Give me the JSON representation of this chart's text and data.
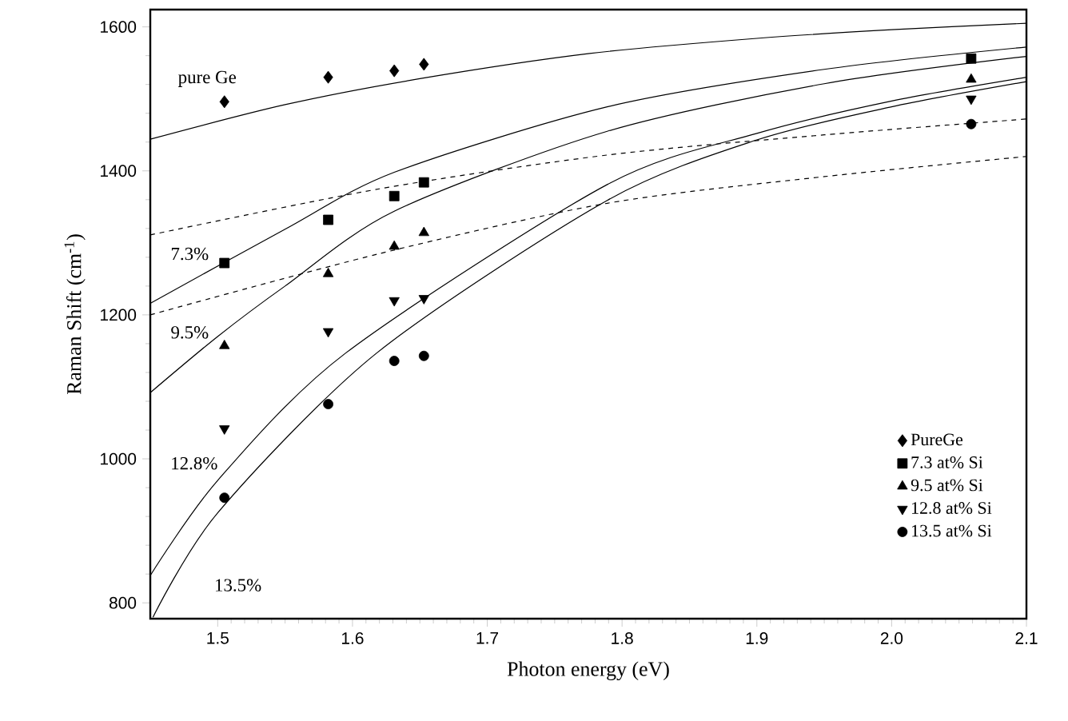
{
  "chart_data": {
    "type": "scatter",
    "xlabel": "Photon energy (eV)",
    "ylabel": "Raman Shift (cm$^{-1}$)",
    "xlim": [
      1.45,
      2.1
    ],
    "ylim": [
      778,
      1624
    ],
    "xticks": [
      1.5,
      1.6,
      1.7,
      1.8,
      1.9,
      {
        "value": 2.0,
        "label": "2.0"
      },
      2.1
    ],
    "yticks": [
      800,
      1000,
      1200,
      1400,
      1600
    ],
    "grid": false,
    "legend": "bottom right",
    "series": [
      {
        "name": "PureGe",
        "color": "#000000",
        "marker": "diamond",
        "x": [
          1.505,
          1.582,
          1.631,
          1.653
        ],
        "values": [
          1496,
          1530,
          1539,
          1548
        ]
      },
      {
        "name": "7.3 at% Si",
        "color": "#000000",
        "marker": "square",
        "x": [
          1.505,
          1.582,
          1.631,
          1.653,
          2.059
        ],
        "values": [
          1272,
          1332,
          1365,
          1384,
          1556
        ]
      },
      {
        "name": "9.5 at% Si",
        "color": "#000000",
        "marker": "triangle",
        "x": [
          1.505,
          1.582,
          1.631,
          1.653,
          2.059
        ],
        "values": [
          1157,
          1257,
          1295,
          1314,
          1527
        ]
      },
      {
        "name": "12.8 at% Si",
        "color": "#000000",
        "marker": "triangle down",
        "x": [
          1.505,
          1.582,
          1.631,
          1.653,
          2.059
        ],
        "values": [
          1042,
          1177,
          1220,
          1223,
          1500
        ]
      },
      {
        "name": "13.5 at% Si",
        "color": "#000000",
        "marker": "circle",
        "x": [
          1.505,
          1.582,
          1.631,
          1.653,
          2.059
        ],
        "values": [
          946,
          1076,
          1136,
          1143,
          1465
        ]
      },
      {
        "type": "line",
        "color": "#000000",
        "marker": "none",
        "line_style": "solid",
        "x": [
          1.45,
          1.55,
          1.65,
          1.776,
          1.9,
          2.0,
          2.1
        ],
        "values": [
          1444,
          1492,
          1528,
          1563,
          1584,
          1596,
          1605
        ]
      },
      {
        "type": "line",
        "color": "#000000",
        "marker": "none",
        "line_style": "solid",
        "x": [
          1.45,
          1.55,
          1.631,
          1.789,
          1.95,
          2.1
        ],
        "values": [
          1216,
          1319,
          1398,
          1489,
          1541,
          1572
        ]
      },
      {
        "type": "line",
        "color": "#000000",
        "marker": "none",
        "line_style": "solid",
        "x": [
          1.45,
          1.5,
          1.55,
          1.631,
          1.789,
          1.95,
          2.1
        ],
        "values": [
          1092,
          1170,
          1240,
          1344,
          1455,
          1521,
          1559
        ]
      },
      {
        "type": "line",
        "color": "#000000",
        "marker": "none",
        "line_style": "solid",
        "x": [
          1.45,
          1.5,
          1.595,
          1.789,
          1.9,
          2.0,
          2.1
        ],
        "values": [
          838,
          970,
          1147,
          1381,
          1452,
          1497,
          1530
        ]
      },
      {
        "type": "line",
        "color": "#000000",
        "marker": "none",
        "line_style": "solid",
        "x": [
          1.452,
          1.5,
          1.618,
          1.789,
          1.9,
          2.0,
          2.1
        ],
        "values": [
          780,
          925,
          1147,
          1359,
          1443,
          1489,
          1524
        ]
      },
      {
        "type": "line",
        "color": "#000000",
        "marker": "none",
        "line_style": "dashed",
        "x": [
          1.45,
          1.62,
          1.789,
          1.95,
          2.1
        ],
        "values": [
          1311,
          1375,
          1422,
          1450,
          1472
        ]
      },
      {
        "type": "line",
        "color": "#000000",
        "marker": "none",
        "line_style": "dashed",
        "x": [
          1.45,
          1.62,
          1.789,
          1.95,
          2.1
        ],
        "values": [
          1200,
          1285,
          1355,
          1392,
          1420
        ]
      }
    ],
    "annotations": [
      "pure Ge",
      "7.3%",
      "9.5%",
      "12.8%",
      "13.5%"
    ]
  }
}
